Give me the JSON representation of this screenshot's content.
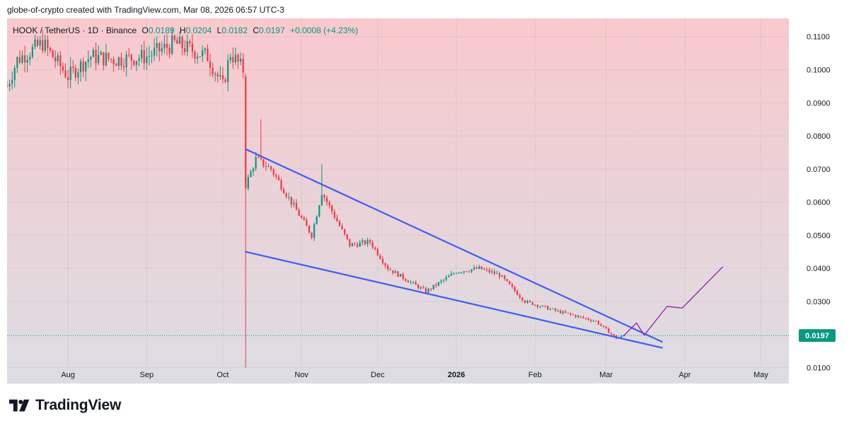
{
  "caption": "globe-of-crypto created with TradingView.com, Mar 08, 2026 06:57 UTC-3",
  "brand": {
    "name": "TradingView"
  },
  "legend": {
    "symbol": "HOOK / TetherUS · 1D · Binance",
    "open_label": "O",
    "open": "0.0189",
    "high_label": "H",
    "high": "0.0204",
    "low_label": "L",
    "low": "0.0182",
    "close_label": "C",
    "close": "0.0197",
    "change": "+0.0008 (+4.23%)"
  },
  "colors": {
    "up": "#089981",
    "down": "#f23645",
    "wedge": "#3d5cf5",
    "projection": "#9c27b0",
    "bg_top": "#f8c9cd",
    "bg_bottom": "#dcdde3",
    "price_tag": "#089981"
  },
  "chart_data": {
    "type": "candlestick",
    "x_axis": {
      "labels": [
        "Aug",
        "Sep",
        "Oct",
        "Nov",
        "Dec",
        "2026",
        "Feb",
        "Mar",
        "Apr",
        "May"
      ],
      "dates": [
        "2025-08-01",
        "2025-09-01",
        "2025-10-01",
        "2025-11-01",
        "2025-12-01",
        "2026-01-01",
        "2026-02-01",
        "2026-03-01",
        "2026-04-01",
        "2026-05-01"
      ],
      "bold_label": "2026",
      "range": [
        "2025-07-08",
        "2026-05-12"
      ]
    },
    "y_axis": {
      "ticks": [
        "0.1100",
        "0.1000",
        "0.0900",
        "0.0800",
        "0.0700",
        "0.0600",
        "0.0500",
        "0.0400",
        "0.0300",
        "0.0100"
      ],
      "range": [
        0.0052,
        0.1155
      ],
      "side": "right"
    },
    "last_price": "0.0197",
    "series_anchors": [
      {
        "date": "2025-07-08",
        "close": 0.095
      },
      {
        "date": "2025-07-12",
        "close": 0.103
      },
      {
        "date": "2025-07-22",
        "close": 0.108
      },
      {
        "date": "2025-08-01",
        "close": 0.098
      },
      {
        "date": "2025-08-10",
        "close": 0.104
      },
      {
        "date": "2025-08-20",
        "close": 0.103
      },
      {
        "date": "2025-09-01",
        "close": 0.104
      },
      {
        "date": "2025-09-12",
        "close": 0.108
      },
      {
        "date": "2025-09-25",
        "close": 0.104
      },
      {
        "date": "2025-10-01",
        "close": 0.095
      },
      {
        "date": "2025-10-04",
        "close": 0.105
      },
      {
        "date": "2025-10-09",
        "close": 0.1
      },
      {
        "date": "2025-10-10",
        "close": 0.065
      },
      {
        "date": "2025-10-14",
        "close": 0.073
      },
      {
        "date": "2025-10-20",
        "close": 0.07
      },
      {
        "date": "2025-11-05",
        "close": 0.05
      },
      {
        "date": "2025-11-09",
        "close": 0.063
      },
      {
        "date": "2025-11-20",
        "close": 0.047
      },
      {
        "date": "2025-11-28",
        "close": 0.048
      },
      {
        "date": "2025-12-05",
        "close": 0.04
      },
      {
        "date": "2025-12-20",
        "close": 0.033
      },
      {
        "date": "2026-01-01",
        "close": 0.039
      },
      {
        "date": "2026-01-10",
        "close": 0.04
      },
      {
        "date": "2026-01-18",
        "close": 0.038
      },
      {
        "date": "2026-01-28",
        "close": 0.03
      },
      {
        "date": "2026-02-10",
        "close": 0.027
      },
      {
        "date": "2026-02-25",
        "close": 0.024
      },
      {
        "date": "2026-03-05",
        "close": 0.0189
      },
      {
        "date": "2026-03-08",
        "close": 0.0197
      }
    ],
    "spikes": [
      {
        "date": "2025-10-10",
        "low": 0.01
      },
      {
        "date": "2025-10-16",
        "high": 0.085
      },
      {
        "date": "2025-11-09",
        "high": 0.0715
      }
    ],
    "wedge_upper": [
      {
        "date": "2025-10-10",
        "price": 0.076
      },
      {
        "date": "2026-03-23",
        "price": 0.0178
      }
    ],
    "wedge_lower": [
      {
        "date": "2025-10-10",
        "price": 0.045
      },
      {
        "date": "2026-03-23",
        "price": 0.016
      }
    ],
    "projection_path": [
      {
        "date": "2026-03-08",
        "price": 0.0197
      },
      {
        "date": "2026-03-13",
        "price": 0.0235
      },
      {
        "date": "2026-03-16",
        "price": 0.0198
      },
      {
        "date": "2026-03-25",
        "price": 0.0285
      },
      {
        "date": "2026-03-31",
        "price": 0.028
      },
      {
        "date": "2026-04-16",
        "price": 0.0405
      }
    ]
  }
}
